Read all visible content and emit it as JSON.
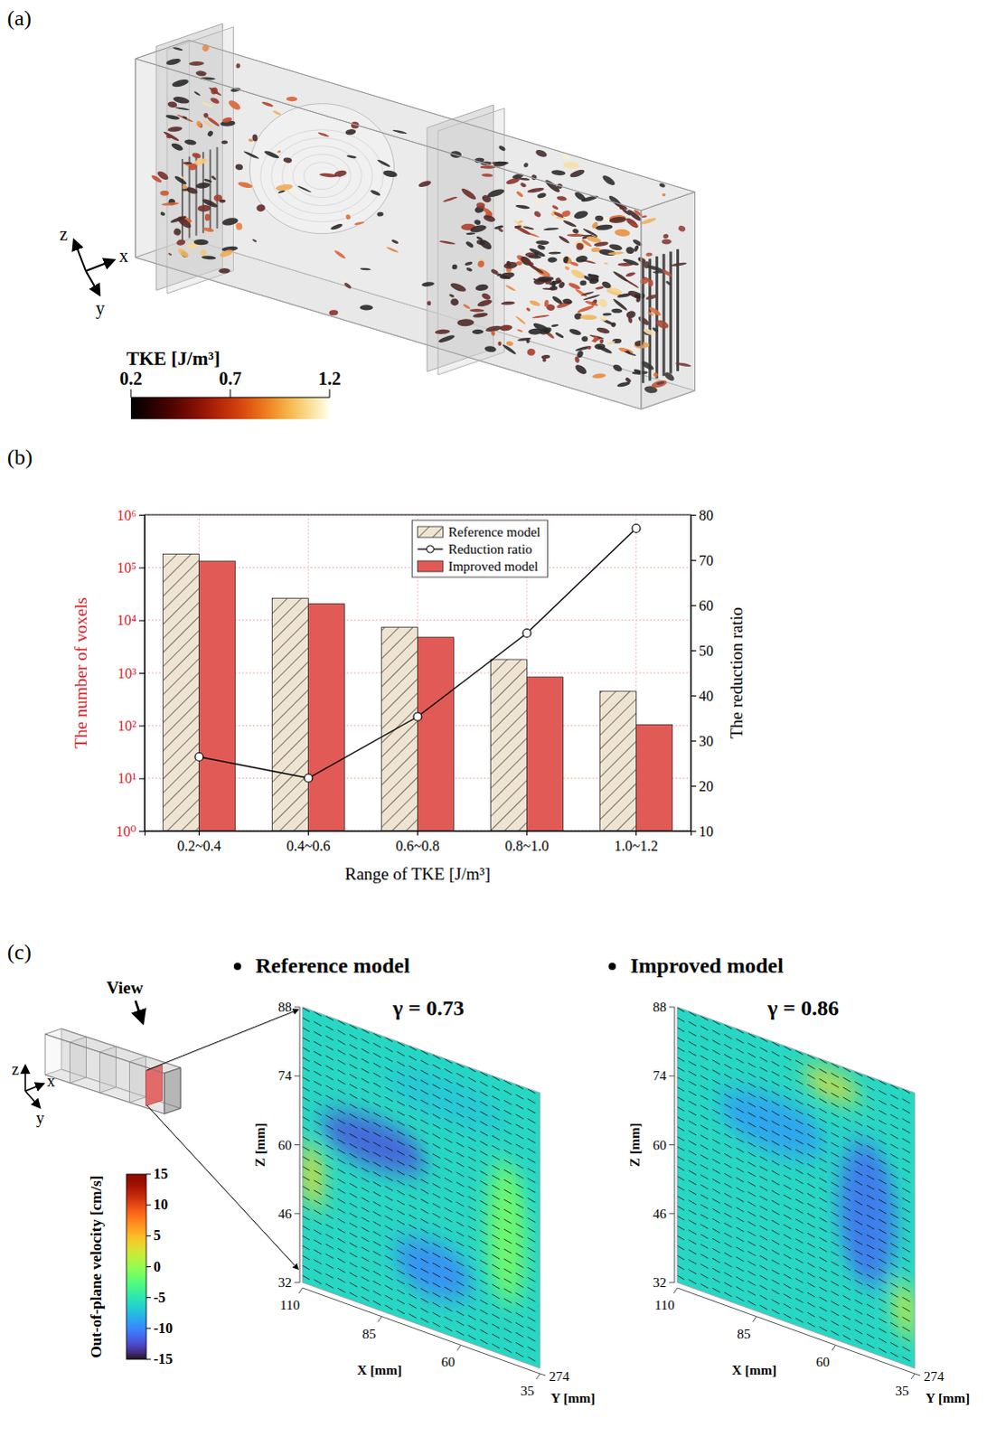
{
  "figure": {
    "panel_labels": [
      "(a)",
      "(b)",
      "(c)"
    ]
  },
  "panel_a": {
    "axis_labels": [
      "z",
      "x",
      "y"
    ],
    "colorbar": {
      "title": "TKE [J/m³]",
      "range": [
        0.2,
        1.2
      ],
      "ticks": [
        0.2,
        0.7,
        1.2
      ]
    }
  },
  "chart_data": {
    "type": "bar",
    "categories": [
      "0.2~0.4",
      "0.4~0.6",
      "0.6~0.8",
      "0.8~1.0",
      "1.0~1.2"
    ],
    "xlabel": "Range of TKE [J/m³]",
    "ylabel": "The number of voxels",
    "y2label": "The reduction ratio",
    "log": "y",
    "ylim": [
      1,
      1000000
    ],
    "yticks": [
      {
        "value": 1,
        "label": "10⁰"
      },
      {
        "value": 10,
        "label": "10¹"
      },
      {
        "value": 100,
        "label": "10²"
      },
      {
        "value": 1000,
        "label": "10³"
      },
      {
        "value": 10000,
        "label": "10⁴"
      },
      {
        "value": 100000,
        "label": "10⁵"
      },
      {
        "value": 1000000,
        "label": "10⁶"
      }
    ],
    "y2lim": [
      10,
      80
    ],
    "y2ticks": [
      10,
      20,
      30,
      40,
      50,
      60,
      70,
      80
    ],
    "grid": true,
    "legend": "upper center",
    "series": [
      {
        "name": "Reference model",
        "type": "bar",
        "color": "#efe4d2",
        "values": [
          180000,
          26000,
          7300,
          1800,
          450
        ]
      },
      {
        "name": "Reduction ratio",
        "type": "line",
        "axis": "y2",
        "marker": "circle",
        "color": "#000000",
        "values": [
          26.4,
          21.7,
          35.3,
          53.8,
          77
        ]
      },
      {
        "name": "Improved model",
        "type": "bar",
        "color": "#e15a55",
        "values": [
          132500,
          20400,
          4720,
          830,
          104
        ]
      }
    ]
  },
  "panel_c": {
    "inset": {
      "view_label": "View",
      "axis_labels": [
        "z",
        "x",
        "y"
      ]
    },
    "colorbar": {
      "title": "Out-of-plane velocity [cm/s]",
      "range": [
        -15,
        15
      ],
      "ticks": [
        -15,
        -10,
        -5,
        0,
        5,
        10,
        15
      ]
    },
    "panels": [
      {
        "title": "Reference model",
        "gamma": "γ = 0.73"
      },
      {
        "title": "Improved model",
        "gamma": "γ = 0.86"
      }
    ],
    "zlabel": "Z [mm]",
    "xlabel": "X [mm]",
    "ylabel": "Y [mm]",
    "z_range": [
      32,
      88
    ],
    "z_ticks": [
      32,
      46,
      60,
      74,
      88
    ],
    "x_range": [
      110,
      35
    ],
    "x_ticks": [
      110,
      85,
      60,
      35
    ],
    "y_ticks": [
      274
    ]
  }
}
